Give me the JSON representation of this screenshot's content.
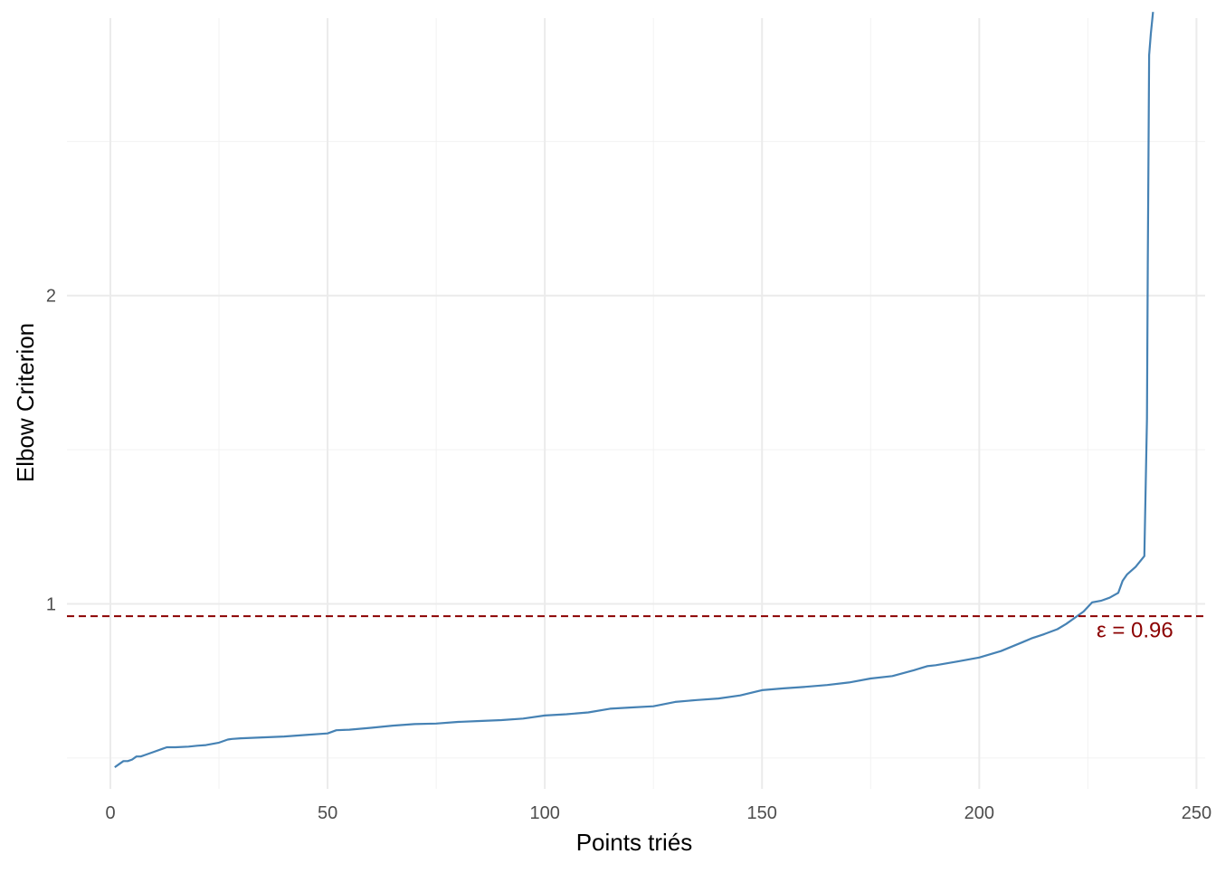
{
  "chart_data": {
    "type": "line",
    "xlabel": "Points triés",
    "ylabel": "Elbow Criterion",
    "xlim": [
      -10,
      252
    ],
    "ylim": [
      0.4,
      2.9
    ],
    "x_ticks": [
      0,
      50,
      100,
      150,
      200,
      250
    ],
    "x_tick_labels": [
      "0",
      "50",
      "100",
      "150",
      "200",
      "250"
    ],
    "x_minor_gridlines": [
      25,
      75,
      125,
      175,
      225
    ],
    "y_ticks": [
      1,
      2
    ],
    "y_tick_labels": [
      "1",
      "2"
    ],
    "y_minor_gridlines": [
      0.5,
      1.5,
      2.5
    ],
    "grid": true,
    "line_color": "#4682b4",
    "series": [
      {
        "x": [
          1,
          2,
          3,
          4,
          5,
          6,
          7,
          8,
          10,
          12,
          13,
          15,
          18,
          20,
          22,
          25,
          27,
          28,
          30,
          35,
          40,
          45,
          50,
          52,
          55,
          60,
          65,
          70,
          75,
          80,
          85,
          90,
          95,
          100,
          105,
          110,
          115,
          120,
          125,
          130,
          135,
          140,
          145,
          150,
          155,
          160,
          165,
          170,
          175,
          180,
          185,
          188,
          190,
          195,
          200,
          205,
          210,
          212,
          215,
          218,
          220,
          222,
          224,
          226,
          228,
          230,
          232,
          233,
          234,
          236,
          238,
          238.6,
          238.8,
          239.1,
          239.5,
          240
        ],
        "y": [
          0.47,
          0.48,
          0.49,
          0.49,
          0.495,
          0.505,
          0.505,
          0.51,
          0.52,
          0.53,
          0.535,
          0.535,
          0.537,
          0.54,
          0.542,
          0.55,
          0.56,
          0.562,
          0.564,
          0.567,
          0.57,
          0.575,
          0.58,
          0.59,
          0.592,
          0.598,
          0.605,
          0.61,
          0.612,
          0.617,
          0.62,
          0.623,
          0.628,
          0.638,
          0.642,
          0.648,
          0.66,
          0.664,
          0.668,
          0.682,
          0.688,
          0.693,
          0.703,
          0.72,
          0.726,
          0.731,
          0.737,
          0.745,
          0.758,
          0.766,
          0.785,
          0.798,
          0.801,
          0.813,
          0.826,
          0.847,
          0.876,
          0.888,
          0.902,
          0.918,
          0.935,
          0.955,
          0.975,
          1.005,
          1.01,
          1.02,
          1.036,
          1.075,
          1.095,
          1.12,
          1.155,
          1.6,
          2.1,
          2.78,
          2.85,
          2.92
        ]
      }
    ],
    "hline": {
      "y": 0.96,
      "color": "#8b0000",
      "style": "dashed"
    },
    "annotation": {
      "text": "ε = 0.96",
      "x": 227,
      "y": 0.915,
      "color": "#8b0000"
    }
  }
}
